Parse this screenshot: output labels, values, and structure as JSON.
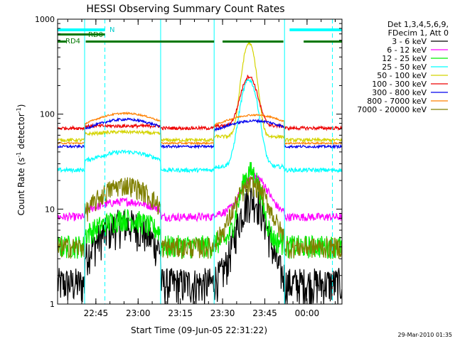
{
  "colors": {
    "black": "#000000",
    "magenta": "#ff00ff",
    "green": "#00ee00",
    "cyan": "#00ffff",
    "yellow": "#d4d400",
    "red": "#ee0000",
    "blue": "#0000ee",
    "orange": "#ff8000",
    "olive": "#808000",
    "flag_cyan": "#00ffff",
    "flag_green": "#007700",
    "flag_text": "#007700",
    "flag_text_cyan": "#00cccc"
  },
  "chart_data": {
    "type": "line",
    "title": "HESSI Observing Summary Count Rates",
    "xlabel": "Start Time (09-Jun-05 22:31:22)",
    "ylabel": "Count Rate (s⁻¹ detector⁻¹)",
    "ylabel_main": "Count Rate (s",
    "ylabel_sup1": "-1",
    "ylabel_mid": " detector",
    "ylabel_sup2": "-1",
    "ylabel_end": ")",
    "y_scale": "log",
    "ylim": [
      1,
      1000
    ],
    "xlim_minutes_from_start": [
      0,
      101
    ],
    "x_ticks": [
      {
        "label": "22:45",
        "minute": 13.6
      },
      {
        "label": "23:00",
        "minute": 28.6
      },
      {
        "label": "23:15",
        "minute": 43.6
      },
      {
        "label": "23:30",
        "minute": 58.6
      },
      {
        "label": "23:45",
        "minute": 73.6
      },
      {
        "label": "00:00",
        "minute": 88.6
      }
    ],
    "y_ticks": [
      {
        "label": "1",
        "value": 1
      },
      {
        "label": "10",
        "value": 10
      },
      {
        "label": "100",
        "value": 100
      },
      {
        "label": "1000",
        "value": 1000
      }
    ],
    "legend_header_1": "Det 1,3,4,5,6,9,",
    "legend_header_2": "FDecim 1, Att 0",
    "legend_position": "right",
    "series": [
      {
        "name": "3 - 6 keV",
        "color": "#000000",
        "base": 1.8,
        "noise": 0.45,
        "bumps": [
          {
            "center": 24,
            "width": 9,
            "peak": 7
          },
          {
            "center": 69,
            "width": 4,
            "peak": 13
          }
        ]
      },
      {
        "name": "6 - 12 keV",
        "color": "#ff00ff",
        "base": 9,
        "noise": 0.1,
        "bumps": [
          {
            "center": 24,
            "width": 9,
            "peak": 12
          },
          {
            "center": 70,
            "width": 4,
            "peak": 22
          }
        ]
      },
      {
        "name": "12 - 25 keV",
        "color": "#00ee00",
        "base": 4.5,
        "noise": 0.28,
        "bumps": [
          {
            "center": 24,
            "width": 9,
            "peak": 8
          },
          {
            "center": 68.5,
            "width": 3,
            "peak": 25
          }
        ]
      },
      {
        "name": "25 - 50 keV",
        "color": "#00ffff",
        "base": 28,
        "noise": 0.05,
        "bumps": [
          {
            "center": 24,
            "width": 10,
            "peak": 40
          },
          {
            "center": 68,
            "width": 2.5,
            "peak": 230
          }
        ]
      },
      {
        "name": "50 - 100 keV",
        "color": "#d4d400",
        "base": 58,
        "noise": 0.04,
        "bumps": [
          {
            "center": 24,
            "width": 12,
            "peak": 65
          },
          {
            "center": 68,
            "width": 2,
            "peak": 560
          }
        ]
      },
      {
        "name": "100 - 300 keV",
        "color": "#ee0000",
        "base": 75,
        "noise": 0.04,
        "bumps": [
          {
            "center": 24,
            "width": 12,
            "peak": 65
          },
          {
            "center": 68,
            "width": 2.5,
            "peak": 250
          }
        ]
      },
      {
        "name": "300 - 800 keV",
        "color": "#0000ee",
        "base": 48,
        "noise": 0.03,
        "bumps": [
          {
            "center": 24,
            "width": 13,
            "peak": 88
          },
          {
            "center": 70,
            "width": 12,
            "peak": 85
          }
        ]
      },
      {
        "name": "800 - 7000 keV",
        "color": "#ff8000",
        "base": 52,
        "noise": 0.02,
        "bumps": [
          {
            "center": 24,
            "width": 13,
            "peak": 102
          },
          {
            "center": 70,
            "width": 12,
            "peak": 98
          }
        ]
      },
      {
        "name": "7000 - 20000 keV",
        "color": "#808000",
        "base": 4.2,
        "noise": 0.25,
        "bumps": [
          {
            "center": 24,
            "width": 10,
            "peak": 18
          },
          {
            "center": 69,
            "width": 5,
            "peak": 18
          }
        ]
      }
    ],
    "night_intervals": [
      [
        0,
        9.6
      ],
      [
        36.6,
        55.6
      ],
      [
        80.6,
        101
      ]
    ],
    "saa_marks_minute": [
      16.8,
      97.6
    ],
    "flags": {
      "N_label": "N",
      "RD0_label": "RD0",
      "RD4_label": "RD4",
      "night_segments": [
        [
          0,
          16.8
        ],
        [
          82.4,
          101
        ]
      ],
      "rd0_segments": [
        [
          0,
          16.8
        ]
      ],
      "rd4_segments": [
        [
          0,
          3
        ],
        [
          10,
          36.6
        ],
        [
          36.6,
          55.6
        ],
        [
          58.6,
          80.2
        ],
        [
          87.4,
          101
        ]
      ]
    }
  },
  "footer": {
    "timestamp": "29-Mar-2010 01:35"
  }
}
